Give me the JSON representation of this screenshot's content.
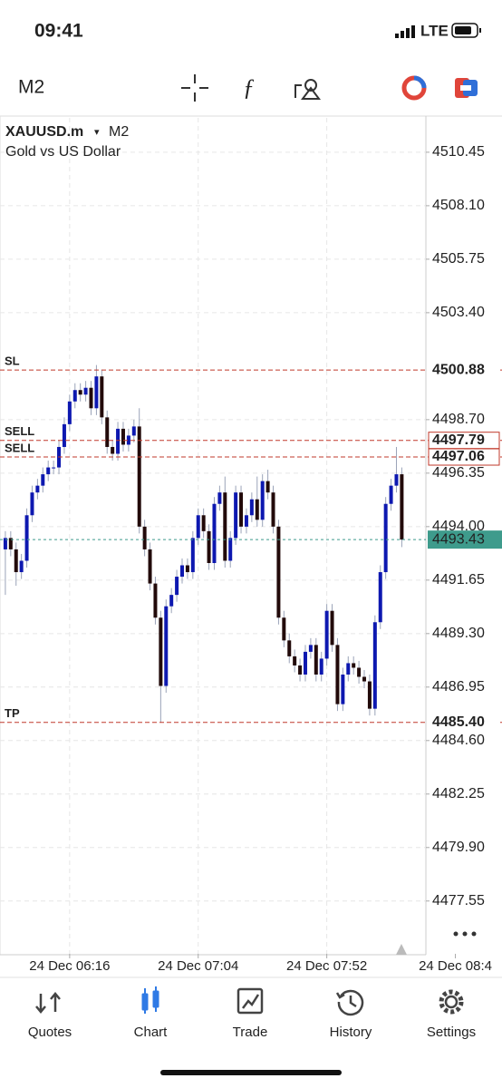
{
  "status_bar": {
    "time": "09:41",
    "network": "LTE"
  },
  "toolbar": {
    "timeframe": "M2"
  },
  "chart_data": {
    "type": "candlestick",
    "symbol": "XAUUSD.m",
    "symbol_marker": "▾",
    "timeframe": "M2",
    "description": "Gold vs US Dollar",
    "open": [
      4493.0,
      4493.5,
      4493.0,
      4492.0,
      4492.5,
      4494.5,
      4495.5,
      4495.8,
      4496.3,
      4496.6,
      4496.6,
      4497.5,
      4498.5,
      4499.5,
      4500.0,
      4499.8,
      4500.1,
      4499.2,
      4500.6,
      4498.8,
      4497.5,
      4497.2,
      4498.3,
      4497.6,
      4498.0,
      4498.4,
      4494.0,
      4493.0,
      4491.5,
      4490.0,
      4487.0,
      4490.5,
      4491.0,
      4491.8,
      4492.3,
      4492.0,
      4493.5,
      4494.5,
      4493.8,
      4492.4,
      4495.0,
      4495.5,
      4492.5,
      4493.5,
      4495.5,
      4494.0,
      4494.5,
      4495.2,
      4494.3,
      4496.0,
      4495.5,
      4494.0,
      4490.0,
      4489.0,
      4488.3,
      4487.9,
      4487.5,
      4488.5,
      4488.8,
      4487.5,
      4488.2,
      4490.3,
      4488.8,
      4486.2,
      4487.5,
      4488.0,
      4487.8,
      4487.4,
      4487.2,
      4486.0,
      4489.8,
      4492.0,
      4495.0,
      4495.8,
      4496.3
    ],
    "high": [
      4493.8,
      4493.8,
      4493.3,
      4492.8,
      4494.8,
      4495.8,
      4496.1,
      4496.6,
      4496.9,
      4496.9,
      4497.8,
      4498.8,
      4499.8,
      4500.3,
      4500.3,
      4500.4,
      4500.4,
      4501.1,
      4500.9,
      4499.1,
      4497.8,
      4498.6,
      4498.6,
      4498.3,
      4498.7,
      4499.2,
      4494.3,
      4493.3,
      4491.8,
      4490.3,
      4490.8,
      4491.3,
      4492.1,
      4492.6,
      4492.6,
      4493.8,
      4494.8,
      4494.8,
      4494.1,
      4495.3,
      4495.8,
      4496.2,
      4493.8,
      4495.8,
      4495.8,
      4494.8,
      4495.5,
      4496.2,
      4496.3,
      4496.5,
      4495.8,
      4494.3,
      4490.3,
      4489.3,
      4488.6,
      4488.2,
      4488.8,
      4489.1,
      4489.1,
      4488.5,
      4490.6,
      4490.6,
      4489.1,
      4487.8,
      4488.3,
      4488.3,
      4488.1,
      4487.7,
      4487.5,
      4490.1,
      4492.3,
      4495.3,
      4496.1,
      4497.5,
      4496.6
    ],
    "low": [
      4491.0,
      4492.7,
      4491.4,
      4491.7,
      4492.2,
      4494.2,
      4495.2,
      4495.5,
      4496.0,
      4496.3,
      4496.3,
      4497.2,
      4498.2,
      4499.2,
      4499.5,
      4499.5,
      4498.9,
      4498.9,
      4498.5,
      4497.2,
      4496.9,
      4496.9,
      4497.3,
      4497.3,
      4497.7,
      4493.7,
      4492.7,
      4491.2,
      4489.7,
      4485.4,
      4486.7,
      4490.2,
      4490.7,
      4491.5,
      4491.7,
      4491.7,
      4493.2,
      4493.5,
      4492.1,
      4492.1,
      4494.7,
      4492.2,
      4492.2,
      4493.2,
      4493.7,
      4493.7,
      4494.2,
      4494.0,
      4494.0,
      4495.2,
      4493.7,
      4489.7,
      4488.7,
      4488.0,
      4487.6,
      4487.2,
      4487.2,
      4488.2,
      4487.2,
      4487.2,
      4487.9,
      4488.5,
      4485.9,
      4485.9,
      4487.2,
      4487.5,
      4487.1,
      4486.9,
      4485.7,
      4485.7,
      4489.5,
      4491.7,
      4494.7,
      4495.5,
      4493.1
    ],
    "close": [
      4493.5,
      4493.0,
      4492.0,
      4492.5,
      4494.5,
      4495.5,
      4495.8,
      4496.3,
      4496.6,
      4496.6,
      4497.5,
      4498.5,
      4499.5,
      4500.0,
      4499.8,
      4500.1,
      4499.2,
      4500.6,
      4498.8,
      4497.5,
      4497.2,
      4498.3,
      4497.6,
      4498.0,
      4498.4,
      4494.0,
      4493.0,
      4491.5,
      4490.0,
      4487.0,
      4490.5,
      4491.0,
      4491.8,
      4492.3,
      4492.0,
      4493.5,
      4494.5,
      4493.8,
      4492.4,
      4495.0,
      4495.5,
      4492.5,
      4493.5,
      4495.5,
      4494.0,
      4494.5,
      4495.2,
      4494.3,
      4496.0,
      4495.5,
      4494.0,
      4490.0,
      4489.0,
      4488.3,
      4487.9,
      4487.5,
      4488.5,
      4488.8,
      4487.5,
      4488.2,
      4490.3,
      4488.8,
      4486.2,
      4487.5,
      4488.0,
      4487.8,
      4487.4,
      4487.2,
      4486.0,
      4489.8,
      4492.0,
      4495.0,
      4495.8,
      4496.3,
      4493.43
    ],
    "up_color": "#0d18b0",
    "down_color": "#220a0a",
    "xlim": [
      -1,
      78.5
    ],
    "xticks": [
      {
        "value": 12,
        "label": "24 Dec 06:16"
      },
      {
        "value": 36,
        "label": "24 Dec 07:04"
      },
      {
        "value": 60,
        "label": "24 Dec 07:52"
      },
      {
        "value": 84,
        "label": "24 Dec 08:4"
      }
    ],
    "ylim": [
      4475.23,
      4511.96
    ],
    "yticks": [
      4510.45,
      {
        "value": 4508.1,
        "label": "4508.10"
      },
      4505.75,
      {
        "value": 4503.4,
        "label": "4503.40"
      },
      {
        "value": 4498.7,
        "label": "4498.70"
      },
      4496.35,
      {
        "value": 4494.0,
        "label": "4494.00"
      },
      4491.65,
      {
        "value": 4489.3,
        "label": "4489.30"
      },
      4486.95,
      {
        "value": 4484.6,
        "label": "4484.60"
      },
      4482.25,
      {
        "value": 4479.9,
        "label": "4479.90"
      },
      4477.55
    ],
    "grid": true,
    "levels": [
      {
        "name": "SL",
        "price": 4500.88,
        "boxed": false
      },
      {
        "name": "SELL",
        "price": 4497.79,
        "boxed": true
      },
      {
        "name": "SELL",
        "price": 4497.06,
        "boxed": true
      },
      {
        "name": "TP",
        "price": {
          "value": 4485.4,
          "label": "4485.40"
        },
        "boxed": false
      }
    ],
    "level_color": "#c0392b",
    "last_price": 4493.43,
    "last_price_color": "#3e9b8c"
  },
  "tab_bar": {
    "tabs": [
      "Quotes",
      "Chart",
      "Trade",
      "History",
      "Settings"
    ],
    "active": 1
  }
}
